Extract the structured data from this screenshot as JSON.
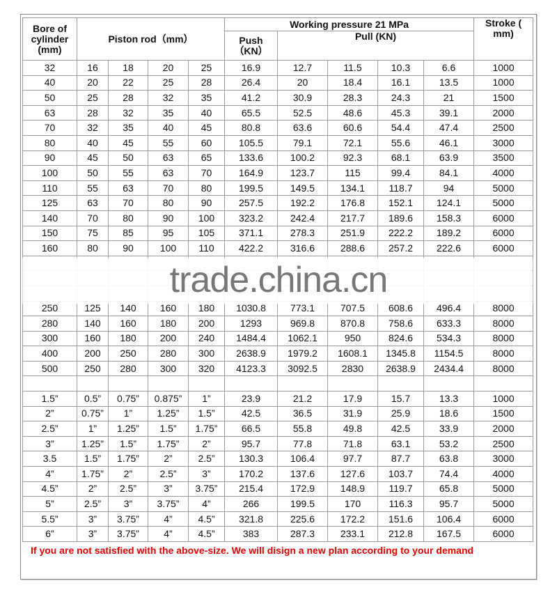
{
  "header": {
    "bore": "Bore of cylinder (mm)",
    "piston_rod": "Piston rod（mm）",
    "working_pressure": "Working pressure 21 MPa",
    "push": "Push （KN）",
    "pull": "Pull (KN)",
    "stroke": "Stroke ( mm)"
  },
  "rows": [
    [
      "32",
      "16",
      "18",
      "20",
      "25",
      "16.9",
      "12.7",
      "11.5",
      "10.3",
      "6.6",
      "1000"
    ],
    [
      "40",
      "20",
      "22",
      "25",
      "28",
      "26.4",
      "20",
      "18.4",
      "16.1",
      "13.5",
      "1000"
    ],
    [
      "50",
      "25",
      "28",
      "32",
      "35",
      "41.2",
      "30.9",
      "28.3",
      "24.3",
      "21",
      "1500"
    ],
    [
      "63",
      "28",
      "32",
      "35",
      "40",
      "65.5",
      "52.5",
      "48.6",
      "45.3",
      "39.1",
      "2000"
    ],
    [
      "70",
      "32",
      "35",
      "40",
      "45",
      "80.8",
      "63.6",
      "60.6",
      "54.4",
      "47.4",
      "2500"
    ],
    [
      "80",
      "40",
      "45",
      "55",
      "60",
      "105.5",
      "79.1",
      "72.1",
      "55.6",
      "46.1",
      "3000"
    ],
    [
      "90",
      "45",
      "50",
      "63",
      "65",
      "133.6",
      "100.2",
      "92.3",
      "68.1",
      "63.9",
      "3500"
    ],
    [
      "100",
      "50",
      "55",
      "63",
      "70",
      "164.9",
      "123.7",
      "115",
      "99.4",
      "84.1",
      "4000"
    ],
    [
      "110",
      "55",
      "63",
      "70",
      "80",
      "199.5",
      "149.5",
      "134.1",
      "118.7",
      "94",
      "5000"
    ],
    [
      "125",
      "63",
      "70",
      "80",
      "90",
      "257.5",
      "192.2",
      "176.8",
      "152.1",
      "124.1",
      "5000"
    ],
    [
      "140",
      "70",
      "80",
      "90",
      "100",
      "323.2",
      "242.4",
      "217.7",
      "189.6",
      "158.3",
      "6000"
    ],
    [
      "150",
      "75",
      "85",
      "95",
      "105",
      "371.1",
      "278.3",
      "251.9",
      "222.2",
      "189.2",
      "6000"
    ],
    [
      "160",
      "80",
      "90",
      "100",
      "110",
      "422.2",
      "316.6",
      "288.6",
      "257.2",
      "222.6",
      "6000"
    ]
  ],
  "rows_lower": [
    [
      "250",
      "125",
      "140",
      "160",
      "180",
      "1030.8",
      "773.1",
      "707.5",
      "608.6",
      "496.4",
      "8000"
    ],
    [
      "280",
      "140",
      "160",
      "180",
      "200",
      "1293",
      "969.8",
      "870.8",
      "758.6",
      "633.3",
      "8000"
    ],
    [
      "300",
      "160",
      "180",
      "200",
      "240",
      "1484.4",
      "1062.1",
      "950",
      "824.6",
      "534.3",
      "8000"
    ],
    [
      "400",
      "200",
      "250",
      "280",
      "300",
      "2638.9",
      "1979.2",
      "1608.1",
      "1345.8",
      "1154.5",
      "8000"
    ],
    [
      "500",
      "250",
      "280",
      "300",
      "320",
      "4123.3",
      "3092.5",
      "2830",
      "2638.9",
      "2434.4",
      "8000"
    ]
  ],
  "inch_rows": [
    [
      "1.5”",
      "0.5”",
      "0.75”",
      "0.875”",
      "1”",
      "23.9",
      "21.2",
      "17.9",
      "15.7",
      "13.3",
      "1000"
    ],
    [
      "2”",
      "0.75”",
      "1”",
      "1.25”",
      "1.5”",
      "42.5",
      "36.5",
      "31.9",
      "25.9",
      "18.6",
      "1500"
    ],
    [
      "2.5”",
      "1”",
      "1.25”",
      "1.5”",
      "1.75”",
      "66.5",
      "55.8",
      "49.8",
      "42.5",
      "33.9",
      "2000"
    ],
    [
      "3”",
      "1.25”",
      "1.5”",
      "1.75”",
      "2”",
      "95.7",
      "77.8",
      "71.8",
      "63.1",
      "53.2",
      "2500"
    ],
    [
      "3.5",
      "1.5”",
      "1.75”",
      "2”",
      "2.5”",
      "130.3",
      "106.4",
      "97.7",
      "87.7",
      "63.8",
      "3000"
    ],
    [
      "4”",
      "1.75”",
      "2”",
      "2.5”",
      "3”",
      "170.2",
      "137.6",
      "127.6",
      "103.7",
      "74.4",
      "4000"
    ],
    [
      "4.5”",
      "2”",
      "2.5”",
      "3”",
      "3.75”",
      "215.4",
      "172.9",
      "148.9",
      "119.7",
      "65.8",
      "5000"
    ],
    [
      "5”",
      "2.5”",
      "3”",
      "3.75”",
      "4”",
      "266",
      "199.5",
      "170",
      "116.3",
      "95.7",
      "5000"
    ],
    [
      "5.5”",
      "3”",
      "3.75”",
      "4”",
      "4.5”",
      "321.8",
      "225.6",
      "172.2",
      "151.6",
      "106.4",
      "6000"
    ],
    [
      "6”",
      "3”",
      "3.75”",
      "4”",
      "4.5”",
      "383",
      "287.3",
      "233.1",
      "212.8",
      "167.5",
      "6000"
    ]
  ],
  "footer": "If you are not satisfied with the above-size. We will disign a new plan according to your demand",
  "watermark": "trade.china.cn"
}
